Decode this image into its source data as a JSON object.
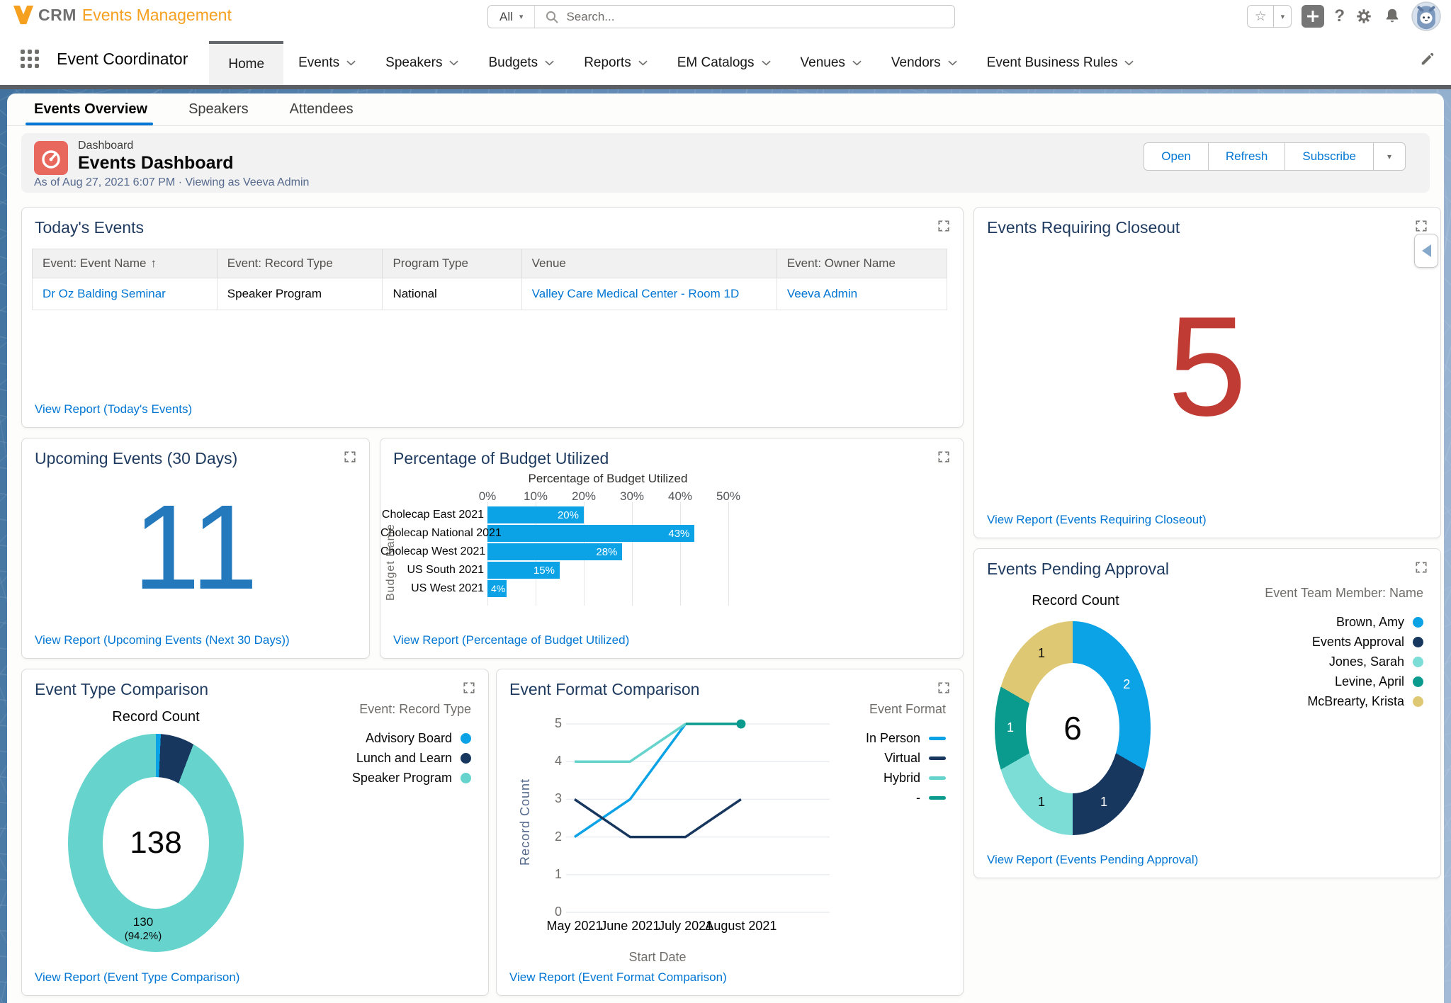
{
  "app": {
    "logo_v": "V",
    "logo_crm": "CRM",
    "logo_suffix": "Events Management",
    "search": {
      "scope": "All",
      "placeholder": "Search..."
    }
  },
  "icons": {
    "star": "☆",
    "caret_down": "▾",
    "help": "?",
    "sort_ascending": "↑"
  },
  "nav": {
    "app_name": "Event Coordinator",
    "items": [
      {
        "label": "Home",
        "active": true,
        "menu": false
      },
      {
        "label": "Events",
        "active": false,
        "menu": true
      },
      {
        "label": "Speakers",
        "active": false,
        "menu": true
      },
      {
        "label": "Budgets",
        "active": false,
        "menu": true
      },
      {
        "label": "Reports",
        "active": false,
        "menu": true
      },
      {
        "label": "EM Catalogs",
        "active": false,
        "menu": true
      },
      {
        "label": "Venues",
        "active": false,
        "menu": true
      },
      {
        "label": "Vendors",
        "active": false,
        "menu": true
      },
      {
        "label": "Event Business Rules",
        "active": false,
        "menu": true
      }
    ]
  },
  "tabs": [
    {
      "label": "Events Overview",
      "active": true
    },
    {
      "label": "Speakers",
      "active": false
    },
    {
      "label": "Attendees",
      "active": false
    }
  ],
  "dashboard": {
    "record_type": "Dashboard",
    "title": "Events Dashboard",
    "as_of": "As of Aug 27, 2021 6:07 PM · Viewing as Veeva Admin",
    "actions": [
      "Open",
      "Refresh",
      "Subscribe"
    ]
  },
  "cards": {
    "todays_events": {
      "title": "Today's Events",
      "view_report": "View Report (Today's Events)",
      "columns": [
        {
          "label": "Event: Event Name",
          "sorted": true
        },
        {
          "label": "Event: Record Type",
          "sorted": false
        },
        {
          "label": "Program Type",
          "sorted": false
        },
        {
          "label": "Venue",
          "sorted": false
        },
        {
          "label": "Event: Owner Name",
          "sorted": false
        }
      ],
      "rows": [
        {
          "cells": [
            {
              "text": "Dr Oz Balding Seminar",
              "link": true
            },
            {
              "text": "Speaker Program",
              "link": false
            },
            {
              "text": "National",
              "link": false
            },
            {
              "text": "Valley Care Medical Center - Room 1D",
              "link": true
            },
            {
              "text": "Veeva Admin",
              "link": true
            }
          ]
        }
      ]
    },
    "closeout": {
      "title": "Events Requiring Closeout",
      "metric": "5",
      "metric_color": "#BF3B33",
      "view_report": "View Report (Events Requiring Closeout)"
    },
    "upcoming": {
      "title": "Upcoming Events (30 Days)",
      "metric": "11",
      "metric_color": "#2479BD",
      "view_report": "View Report (Upcoming Events (Next 30 Days))"
    },
    "budget": {
      "title": "Percentage of Budget Utilized",
      "view_report": "View Report (Percentage of Budget Utilized)"
    },
    "event_type": {
      "title": "Event Type Comparison",
      "view_report": "View Report (Event Type Comparison)"
    },
    "event_format": {
      "title": "Event Format Comparison",
      "view_report": "View Report (Event Format Comparison)"
    },
    "pending": {
      "title": "Events Pending Approval",
      "view_report": "View Report (Events Pending Approval)"
    }
  },
  "chart_data": [
    {
      "id": "percentage_of_budget_utilized",
      "type": "bar",
      "orientation": "horizontal",
      "title": "Percentage of Budget Utilized",
      "ylabel": "Budget Name",
      "categories": [
        "Cholecap East 2021",
        "Cholecap National 2021",
        "Cholecap West 2021",
        "US South 2021",
        "US West 2021"
      ],
      "values": [
        20,
        43,
        28,
        15,
        4
      ],
      "labels": [
        "20%",
        "43%",
        "28%",
        "15%",
        "4%"
      ],
      "xticks": [
        "0%",
        "10%",
        "20%",
        "30%",
        "40%",
        "50%"
      ],
      "xlim": [
        0,
        50
      ],
      "grid": true,
      "bar_color": "#0BA3E5"
    },
    {
      "id": "event_type_comparison",
      "type": "donut",
      "title": "Record Count",
      "legend_title": "Event: Record Type",
      "legend_position": "right",
      "center_total": "138",
      "slices": [
        {
          "label": "Advisory Board",
          "value": 1,
          "color": "#0BA3E5"
        },
        {
          "label": "Lunch and Learn",
          "value": 7,
          "color": "#17375F"
        },
        {
          "label": "Speaker Program",
          "value": 130,
          "color": "#66D4CC",
          "data_label": [
            "130",
            "(94.2%)"
          ],
          "label_color": "#080707"
        }
      ]
    },
    {
      "id": "event_format_comparison",
      "type": "line",
      "legend_title": "Event Format",
      "xlabel": "Start Date",
      "ylabel": "Record Count",
      "x": [
        "May 2021",
        "June 2021",
        "July 2021",
        "August 2021"
      ],
      "yticks": [
        0,
        1,
        2,
        3,
        4,
        5
      ],
      "ylim": [
        0,
        5
      ],
      "grid": true,
      "series": [
        {
          "name": "In Person",
          "color": "#0BA3E5",
          "values": [
            2,
            3,
            5,
            null
          ]
        },
        {
          "name": "Virtual",
          "color": "#17375F",
          "values": [
            3,
            2,
            2,
            3
          ]
        },
        {
          "name": "Hybrid",
          "color": "#66D4CC",
          "values": [
            4,
            4,
            5,
            null
          ]
        },
        {
          "name": "-",
          "color": "#0A9B8E",
          "values": [
            null,
            null,
            5,
            5
          ],
          "end_dot": true
        }
      ]
    },
    {
      "id": "events_pending_approval",
      "type": "donut",
      "title": "Record Count",
      "legend_title": "Event Team Member: Name",
      "legend_position": "right",
      "center_total": "6",
      "slices": [
        {
          "label": "Brown, Amy",
          "value": 2,
          "color": "#0BA3E5",
          "data_label": [
            "2"
          ],
          "label_color": "#FFFFFF"
        },
        {
          "label": "Events Approval",
          "value": 1,
          "color": "#17375F",
          "data_label": [
            "1"
          ],
          "label_color": "#FFFFFF"
        },
        {
          "label": "Jones, Sarah",
          "value": 1,
          "color": "#7CDCD6",
          "data_label": [
            "1"
          ],
          "label_color": "#080707"
        },
        {
          "label": "Levine, April",
          "value": 1,
          "color": "#0A9B8E",
          "data_label": [
            "1"
          ],
          "label_color": "#FFFFFF"
        },
        {
          "label": "McBrearty, Krista",
          "value": 1,
          "color": "#DFC873",
          "data_label": [
            "1"
          ],
          "label_color": "#080707"
        }
      ]
    }
  ]
}
